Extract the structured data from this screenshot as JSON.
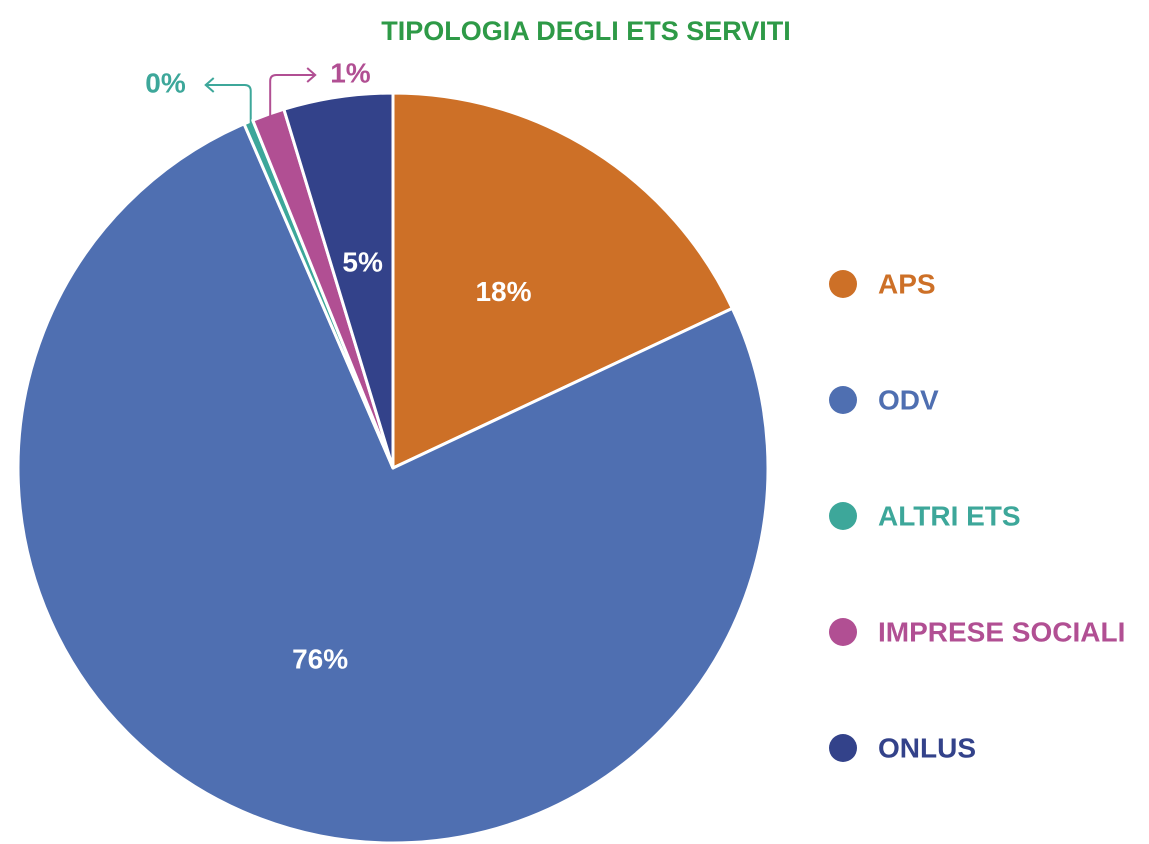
{
  "chart_data": {
    "type": "pie",
    "title": "TIPOLOGIA DEGLI ETS SERVITI",
    "categories": [
      "APS",
      "ODV",
      "ALTRI ETS",
      "IMPRESE SOCIALI",
      "ONLUS"
    ],
    "values": [
      18,
      75.5,
      0.4,
      1.4,
      4.7
    ],
    "value_labels": [
      "18%",
      "76%",
      "0%",
      "1%",
      "5%"
    ],
    "colors": [
      "#cd7027",
      "#4f6fb1",
      "#3da79a",
      "#b14f93",
      "#33428a"
    ],
    "legend": "right"
  }
}
